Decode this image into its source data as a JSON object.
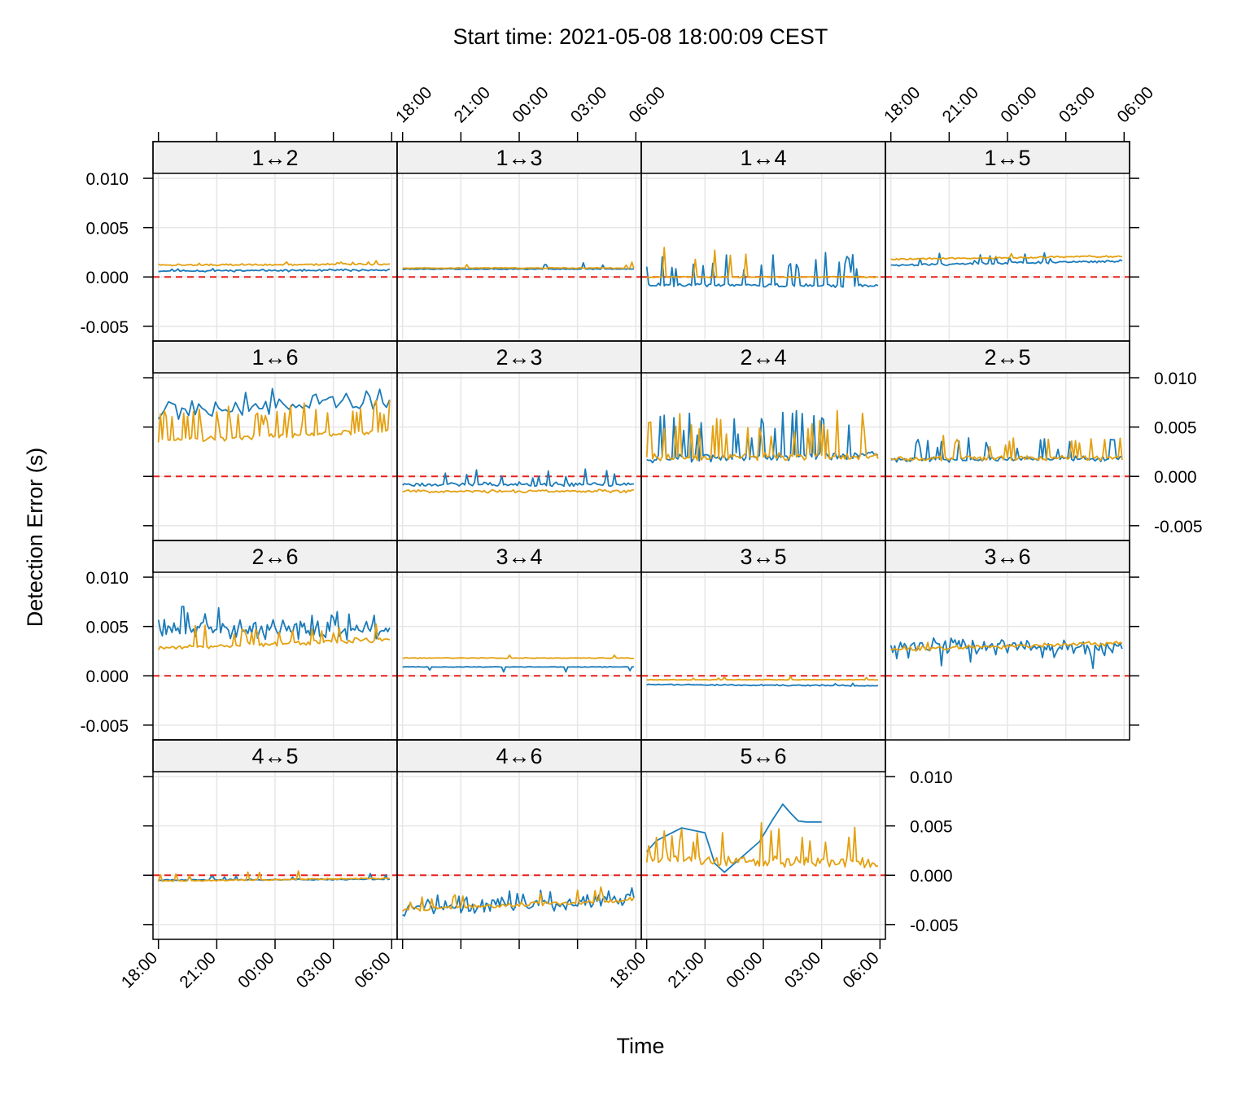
{
  "chart_data": {
    "type": "line",
    "title": "Start time: 2021-05-08 18:00:09 CEST",
    "xlabel": "Time",
    "ylabel": "Detection Error (s)",
    "x_unit": "hours after 18:00 (display clock time)",
    "xlim": [
      -0.28,
      12.28
    ],
    "x_ticks": [
      0,
      3,
      6,
      9,
      12
    ],
    "x_tick_labels": [
      "18:00",
      "21:00",
      "00:00",
      "03:00",
      "06:00"
    ],
    "ylim": [
      -0.0065,
      0.0105
    ],
    "y_ticks": [
      -0.005,
      0,
      0.005,
      0.01
    ],
    "y_tick_labels": [
      "-0.005",
      "0.000",
      "0.005",
      "0.010"
    ],
    "grid": true,
    "reference_line": 0,
    "colors": {
      "series_a": "#1a7bb9",
      "series_b": "#e4a010",
      "reference": "#e8211c",
      "strip": "#f0f0f0",
      "grid": "#e6e6e6"
    },
    "panels": [
      {
        "label": "1↔2",
        "row": 0,
        "col": 0,
        "a": {
          "base": 0.0006,
          "end": 0.0007,
          "noise": 0.00012,
          "spikes": 0.05,
          "spike": 0.0002,
          "seed": 11
        },
        "b": {
          "base": 0.0012,
          "end": 0.0013,
          "noise": 0.00012,
          "spikes": 0.05,
          "spike": 0.0003,
          "seed": 12
        }
      },
      {
        "label": "1↔3",
        "row": 0,
        "col": 1,
        "a": {
          "base": 0.0008,
          "end": 0.0008,
          "noise": 5e-05,
          "spikes": 0.03,
          "spike": 0.0008,
          "seed": 13
        },
        "b": {
          "base": 0.0009,
          "end": 0.0009,
          "noise": 6e-05,
          "spikes": 0.03,
          "spike": 0.0006,
          "seed": 14
        }
      },
      {
        "label": "1↔4",
        "row": 0,
        "col": 2,
        "a": {
          "base": -0.0008,
          "end": -0.0009,
          "noise": 0.0002,
          "spikes": 0.18,
          "spike": 0.0035,
          "seed": 15
        },
        "b": {
          "base": 0.0,
          "end": 0.0,
          "noise": 8e-05,
          "spikes": 0.06,
          "spike": 0.0035,
          "seed": 16
        }
      },
      {
        "label": "1↔5",
        "row": 0,
        "col": 3,
        "a": {
          "base": 0.0012,
          "end": 0.0016,
          "noise": 0.00015,
          "spikes": 0.07,
          "spike": 0.001,
          "seed": 17
        },
        "b": {
          "base": 0.0018,
          "end": 0.0021,
          "noise": 0.0001,
          "spikes": 0.03,
          "spike": 0.0004,
          "seed": 18
        }
      },
      {
        "label": "1↔6",
        "row": 1,
        "col": 0,
        "a": {
          "base": 0.0065,
          "end": 0.008,
          "noise": 0.0012,
          "spikes": 0.12,
          "spike": 0.0018,
          "seed": 21,
          "n": 70
        },
        "b": {
          "base": 0.0036,
          "end": 0.0046,
          "noise": 0.0003,
          "spikes": 0.2,
          "spike": 0.0032,
          "seed": 22
        }
      },
      {
        "label": "2↔3",
        "row": 1,
        "col": 1,
        "a": {
          "base": -0.0008,
          "end": -0.0008,
          "noise": 0.00025,
          "spikes": 0.06,
          "spike": 0.0015,
          "seed": 23
        },
        "b": {
          "base": -0.0015,
          "end": -0.0015,
          "noise": 0.0002,
          "spikes": 0.03,
          "spike": 0.0012,
          "seed": 24
        }
      },
      {
        "label": "2↔4",
        "row": 1,
        "col": 2,
        "a": {
          "base": 0.0018,
          "end": 0.0022,
          "noise": 0.0005,
          "spikes": 0.2,
          "spike": 0.0045,
          "seed": 25
        },
        "b": {
          "base": 0.002,
          "end": 0.002,
          "noise": 0.0005,
          "spikes": 0.18,
          "spike": 0.0045,
          "seed": 26
        }
      },
      {
        "label": "2↔5",
        "row": 1,
        "col": 3,
        "a": {
          "base": 0.0017,
          "end": 0.0018,
          "noise": 0.0003,
          "spikes": 0.15,
          "spike": 0.0022,
          "seed": 27
        },
        "b": {
          "base": 0.0018,
          "end": 0.0019,
          "noise": 0.0003,
          "spikes": 0.12,
          "spike": 0.0022,
          "seed": 28
        }
      },
      {
        "label": "2↔6",
        "row": 2,
        "col": 0,
        "a": {
          "base": 0.0048,
          "end": 0.0045,
          "noise": 0.0011,
          "spikes": 0.15,
          "spike": 0.0018,
          "seed": 31
        },
        "b": {
          "base": 0.0028,
          "end": 0.0037,
          "noise": 0.0003,
          "spikes": 0.15,
          "spike": 0.0022,
          "seed": 32
        }
      },
      {
        "label": "3↔4",
        "row": 2,
        "col": 1,
        "a": {
          "base": 0.0009,
          "end": 0.0009,
          "noise": 4e-05,
          "spikes": 0.02,
          "spike": -0.0006,
          "seed": 33
        },
        "b": {
          "base": 0.0018,
          "end": 0.0018,
          "noise": 5e-05,
          "spikes": 0.02,
          "spike": 0.0003,
          "seed": 34
        }
      },
      {
        "label": "3↔5",
        "row": 2,
        "col": 2,
        "a": {
          "base": -0.0009,
          "end": -0.001,
          "noise": 8e-05,
          "spikes": 0.02,
          "spike": 0.0004,
          "seed": 35
        },
        "b": {
          "base": -0.0004,
          "end": -0.0004,
          "noise": 4e-05,
          "spikes": 0.02,
          "spike": 0.0003,
          "seed": 36
        }
      },
      {
        "label": "3↔6",
        "row": 2,
        "col": 3,
        "a": {
          "base": 0.0032,
          "end": 0.0028,
          "noise": 0.0009,
          "spikes": 0.1,
          "spike": -0.002,
          "seed": 37
        },
        "b": {
          "base": 0.0027,
          "end": 0.0033,
          "noise": 0.0003,
          "spikes": 0.02,
          "spike": 0.0005,
          "seed": 38
        }
      },
      {
        "label": "4↔5",
        "row": 3,
        "col": 0,
        "a": {
          "base": -0.0005,
          "end": -0.0004,
          "noise": 8e-05,
          "spikes": 0.05,
          "spike": 0.0006,
          "seed": 41
        },
        "b": {
          "base": -0.0006,
          "end": -0.0003,
          "noise": 8e-05,
          "spikes": 0.06,
          "spike": 0.001,
          "seed": 42
        }
      },
      {
        "label": "4↔6",
        "row": 3,
        "col": 1,
        "a": {
          "base": -0.0035,
          "end": -0.0025,
          "noise": 0.0009,
          "spikes": 0.2,
          "spike": 0.0012,
          "seed": 43
        },
        "b": {
          "base": -0.0035,
          "end": -0.0025,
          "noise": 0.0003,
          "spikes": 0.12,
          "spike": 0.0015,
          "seed": 44
        }
      },
      {
        "label": "5↔6",
        "row": 3,
        "col": 2,
        "a": {
          "x": [
            0,
            0.5,
            1.8,
            3.0,
            3.5,
            4.0,
            5.8,
            6.5,
            7.0,
            7.4,
            7.8,
            8.2,
            9.0
          ],
          "y": [
            0.0024,
            0.0035,
            0.0048,
            0.0043,
            0.0012,
            0.0003,
            0.0034,
            0.0057,
            0.0072,
            0.0063,
            0.0055,
            0.0054,
            0.0054
          ]
        },
        "b": {
          "base": 0.0015,
          "end": 0.0012,
          "noise": 0.0007,
          "spikes": 0.22,
          "spike": 0.0038,
          "seed": 46
        }
      }
    ],
    "left_axis_panels": [
      [
        0,
        0
      ],
      [
        2,
        0
      ]
    ],
    "right_axis_panels": [
      [
        1,
        3
      ],
      [
        3,
        2
      ]
    ],
    "top_axis_panels": [
      [
        0,
        0
      ],
      [
        0,
        1
      ],
      [
        0,
        3
      ]
    ],
    "top_axis_labeled": [
      [
        0,
        1
      ],
      [
        0,
        3
      ]
    ],
    "bottom_axis_panels": [
      [
        3,
        0
      ],
      [
        3,
        1
      ],
      [
        3,
        2
      ]
    ],
    "bottom_axis_labeled": [
      [
        3,
        0
      ],
      [
        3,
        2
      ]
    ]
  }
}
